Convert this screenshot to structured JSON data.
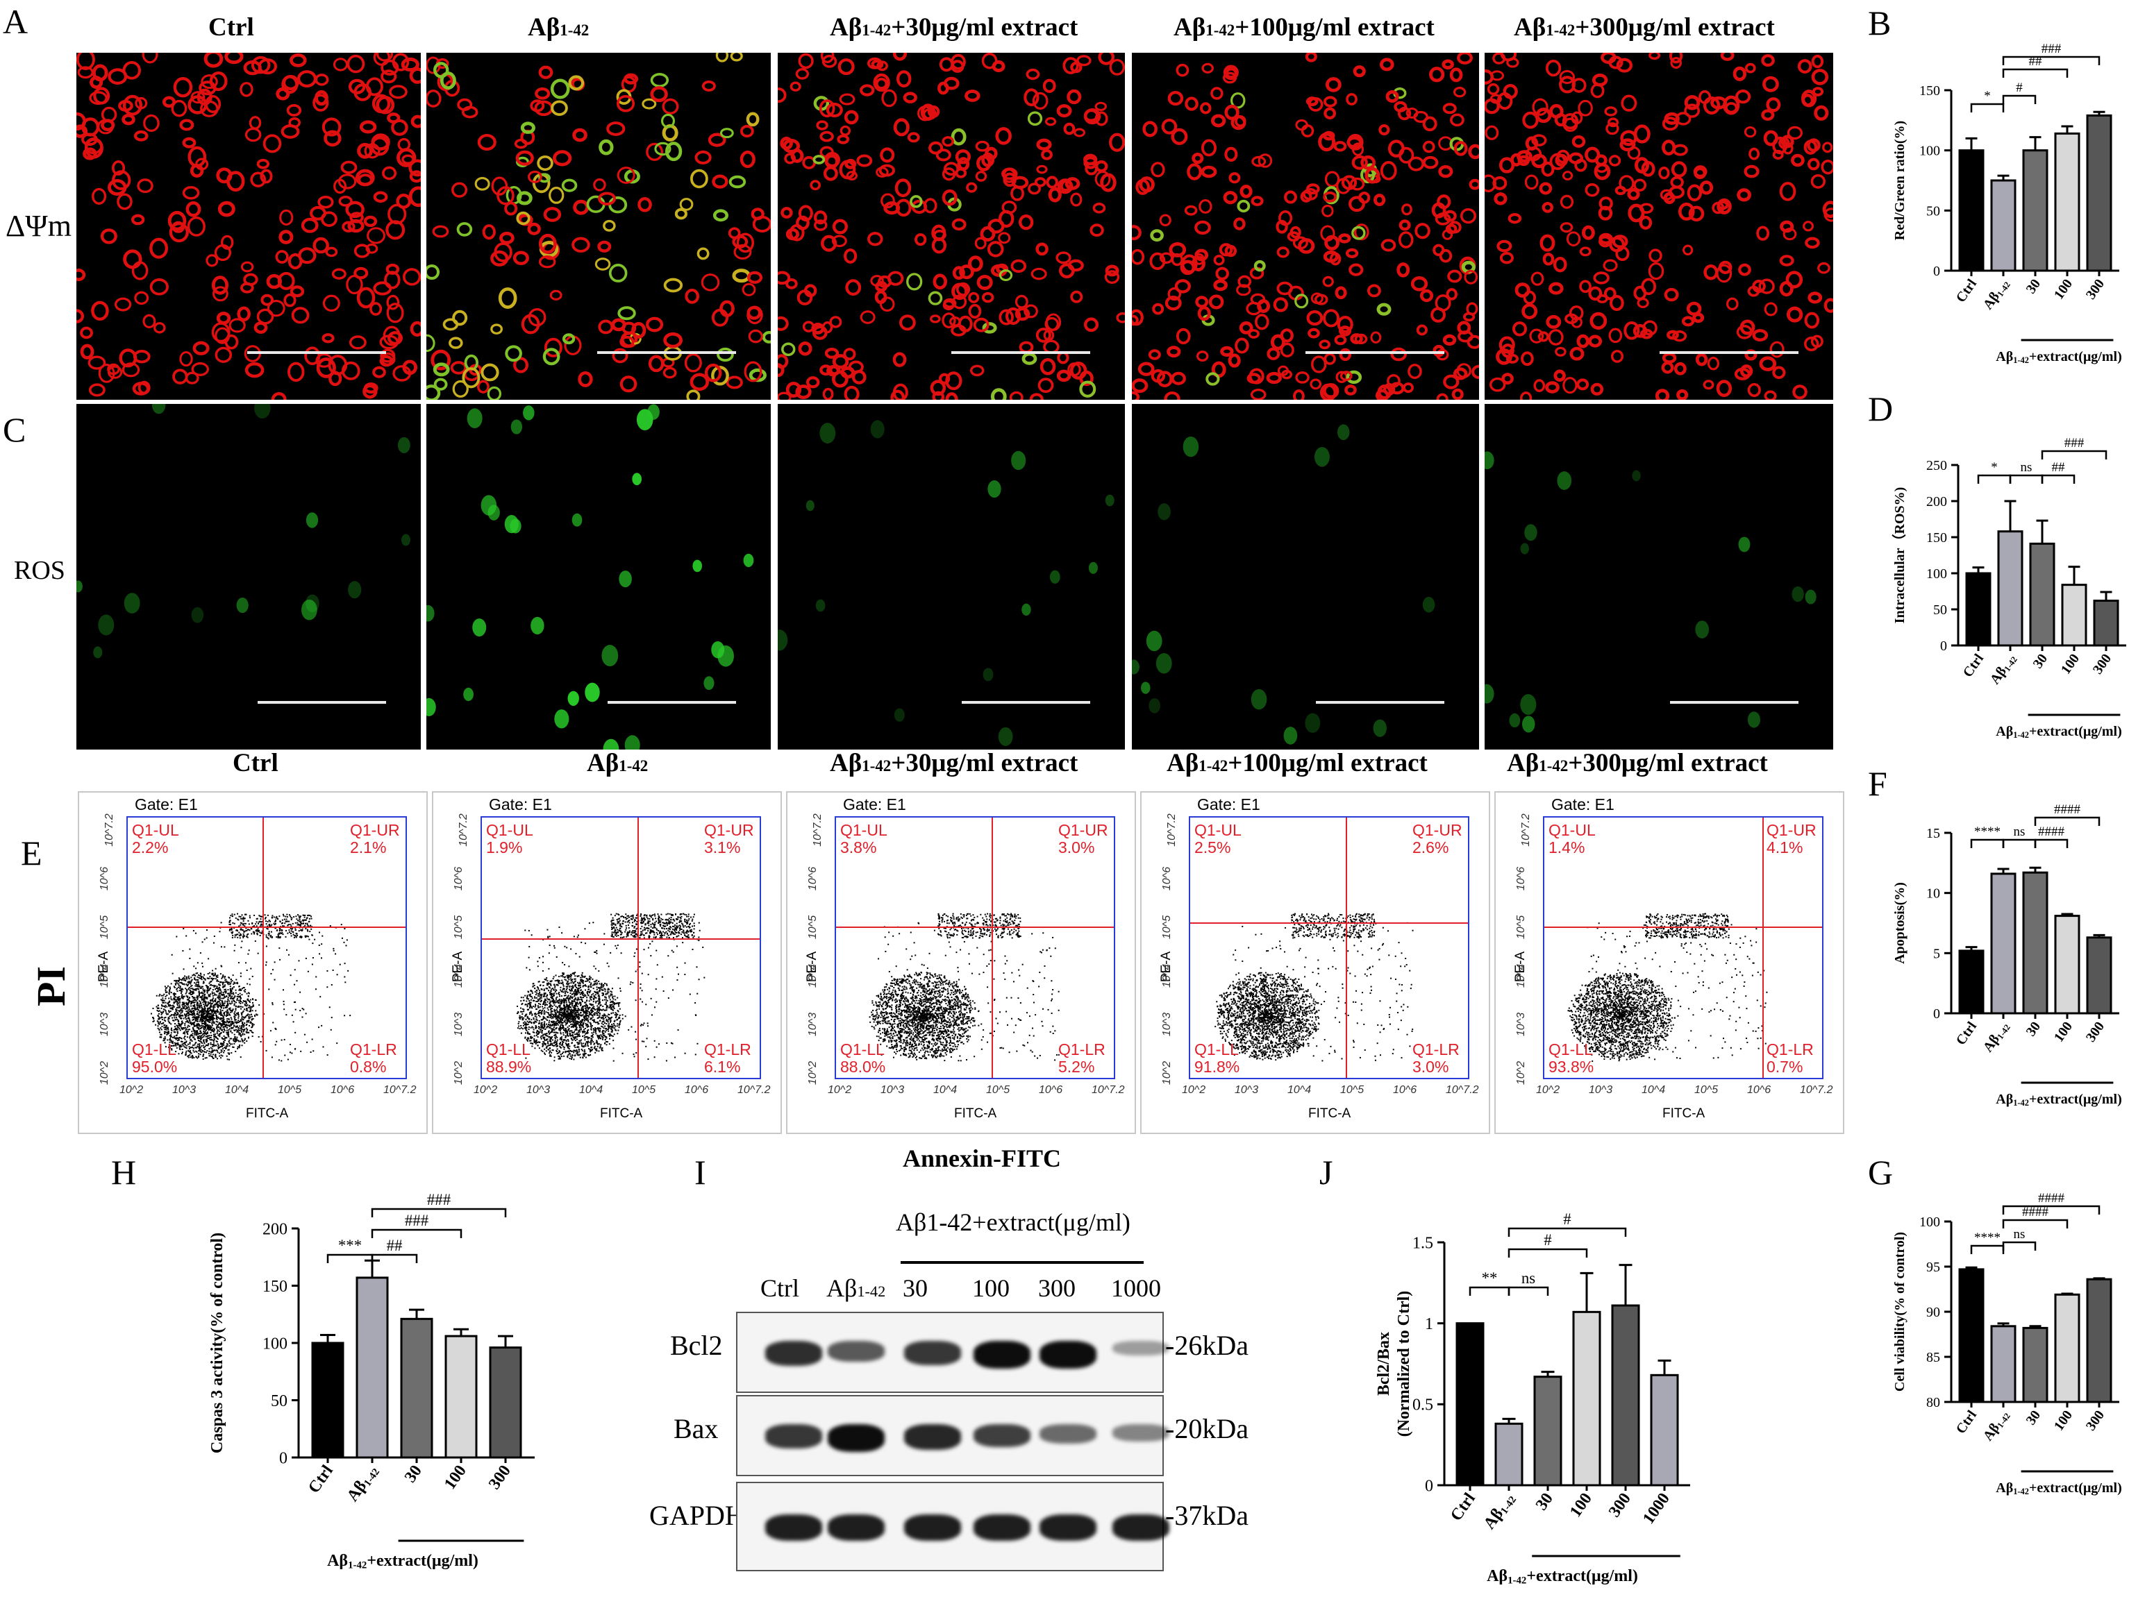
{
  "panel_letters": {
    "A": "A",
    "B": "B",
    "C": "C",
    "D": "D",
    "E": "E",
    "F": "F",
    "G": "G",
    "H": "H",
    "I": "I",
    "J": "J"
  },
  "groups": [
    "Ctrl",
    "Aβ1-42",
    "Aβ1-42+30μg/ml extract",
    "Aβ1-42+100μg/ml extract",
    "Aβ1-42+300μg/ml extract"
  ],
  "groups_top": [
    "Ctrl",
    "Aβ1-42",
    "Aβ1-42+30μg/ml extract",
    "Aβ1-42+100μg/ml extract",
    "Aβ1-42+300μg/ml extract"
  ],
  "row_labels": {
    "mmp": "ΔΨm",
    "ros": "ROS",
    "pi": "PI"
  },
  "flow": {
    "gate": "Gate: E1",
    "x_axis": "FITC-A",
    "y_axis": "PE-A",
    "bottom_label": "Annexin-FITC",
    "ticks_x": [
      "10^2",
      "10^3",
      "10^4",
      "10^5",
      "10^6",
      "10^7.2"
    ],
    "ticks_y": [
      "10^2",
      "10^3",
      "10^4",
      "10^5",
      "10^6",
      "10^7.2"
    ],
    "quadrants": [
      {
        "ul": "Q1-UL",
        "ul_v": "2.2%",
        "ur": "Q1-UR",
        "ur_v": "2.1%",
        "ll": "Q1-LL",
        "ll_v": "95.0%",
        "lr": "Q1-LR",
        "lr_v": "0.8%"
      },
      {
        "ul": "Q1-UL",
        "ul_v": "1.9%",
        "ur": "Q1-UR",
        "ur_v": "3.1%",
        "ll": "Q1-LL",
        "ll_v": "88.9%",
        "lr": "Q1-LR",
        "lr_v": "6.1%"
      },
      {
        "ul": "Q1-UL",
        "ul_v": "3.8%",
        "ur": "Q1-UR",
        "ur_v": "3.0%",
        "ll": "Q1-LL",
        "ll_v": "88.0%",
        "lr": "Q1-LR",
        "lr_v": "5.2%"
      },
      {
        "ul": "Q1-UL",
        "ul_v": "2.5%",
        "ur": "Q1-UR",
        "ur_v": "2.6%",
        "ll": "Q1-LL",
        "ll_v": "91.8%",
        "lr": "Q1-LR",
        "lr_v": "3.0%"
      },
      {
        "ul": "Q1-UL",
        "ul_v": "1.4%",
        "ur": "Q1-UR",
        "ur_v": "4.1%",
        "ll": "Q1-LL",
        "ll_v": "93.8%",
        "lr": "Q1-LR",
        "lr_v": "0.7%"
      }
    ]
  },
  "western": {
    "header": "Aβ1-42+extract(μg/ml)",
    "lanes": [
      "Ctrl",
      "Aβ1-42",
      "30",
      "100",
      "300",
      "1000"
    ],
    "rows": [
      {
        "label": "Bcl2",
        "kda": "-26kDa",
        "intensity": [
          0.8,
          0.55,
          0.75,
          1.0,
          1.0,
          0.15
        ]
      },
      {
        "label": "Bax",
        "kda": "-20kDa",
        "intensity": [
          0.75,
          1.0,
          0.85,
          0.7,
          0.45,
          0.3
        ]
      },
      {
        "label": "GAPDH",
        "kda": "-37kDa",
        "intensity": [
          0.9,
          0.9,
          0.9,
          0.9,
          0.9,
          0.9
        ]
      }
    ]
  },
  "chart_data": [
    {
      "id": "B",
      "type": "bar",
      "categories": [
        "Ctrl",
        "Aβ1-42",
        "30",
        "100",
        "300"
      ],
      "values": [
        100,
        75,
        100,
        114,
        129
      ],
      "errors": [
        10,
        4,
        11,
        6,
        3
      ],
      "ylabel": "Red/Green ratio(%)",
      "ylim": [
        0,
        150
      ],
      "yticks": [
        0,
        50,
        100,
        150
      ],
      "group_label": "Aβ1-42+extract(μg/ml)",
      "sig": [
        {
          "a": 0,
          "b": 1,
          "text": "*"
        },
        {
          "a": 1,
          "b": 2,
          "text": "#"
        },
        {
          "a": 1,
          "b": 3,
          "text": "##"
        },
        {
          "a": 1,
          "b": 4,
          "text": "###"
        }
      ]
    },
    {
      "id": "D",
      "type": "bar",
      "categories": [
        "Ctrl",
        "Aβ1-42",
        "30",
        "100",
        "300"
      ],
      "values": [
        100,
        158,
        141,
        84,
        62
      ],
      "errors": [
        8,
        42,
        32,
        25,
        12
      ],
      "ylabel": "Intracellular（ROS%)",
      "ylim": [
        0,
        250
      ],
      "yticks": [
        0,
        50,
        100,
        150,
        200,
        250
      ],
      "group_label": "Aβ1-42+extract(μg/ml)",
      "sig": [
        {
          "a": 0,
          "b": 1,
          "text": "*"
        },
        {
          "a": 1,
          "b": 2,
          "text": "ns"
        },
        {
          "a": 2,
          "b": 3,
          "text": "##"
        },
        {
          "a": 2,
          "b": 4,
          "text": "###"
        }
      ]
    },
    {
      "id": "F",
      "type": "bar",
      "categories": [
        "Ctrl",
        "Aβ1-42",
        "30",
        "100",
        "300"
      ],
      "values": [
        5.2,
        11.6,
        11.7,
        8.1,
        6.3
      ],
      "errors": [
        0.3,
        0.4,
        0.4,
        0.15,
        0.2
      ],
      "ylabel": "Apoptosis(%)",
      "ylim": [
        0,
        15
      ],
      "yticks": [
        0,
        5,
        10,
        15
      ],
      "group_label": "Aβ1-42+extract(μg/ml)",
      "sig": [
        {
          "a": 0,
          "b": 1,
          "text": "****"
        },
        {
          "a": 1,
          "b": 2,
          "text": "ns"
        },
        {
          "a": 2,
          "b": 3,
          "text": "####"
        },
        {
          "a": 2,
          "b": 4,
          "text": "####"
        }
      ]
    },
    {
      "id": "G",
      "type": "bar",
      "categories": [
        "Ctrl",
        "Aβ1-42",
        "30",
        "100",
        "300"
      ],
      "values": [
        94.7,
        88.4,
        88.2,
        91.9,
        93.6
      ],
      "errors": [
        0.2,
        0.3,
        0.2,
        0.1,
        0.1
      ],
      "ylabel": "Cell viability(% of control)",
      "ylim": [
        80,
        100
      ],
      "yticks": [
        80,
        85,
        90,
        95,
        100
      ],
      "group_label": "Aβ1-42+extract(μg/ml)",
      "sig": [
        {
          "a": 0,
          "b": 1,
          "text": "****"
        },
        {
          "a": 1,
          "b": 2,
          "text": "ns"
        },
        {
          "a": 1,
          "b": 3,
          "text": "####"
        },
        {
          "a": 1,
          "b": 4,
          "text": "####"
        }
      ]
    },
    {
      "id": "H",
      "type": "bar",
      "categories": [
        "Ctrl",
        "Aβ1-42",
        "30",
        "100",
        "300"
      ],
      "values": [
        100,
        157,
        121,
        106,
        96
      ],
      "errors": [
        7,
        15,
        8,
        6,
        10
      ],
      "ylabel": "Caspas 3 activity(% of control)",
      "ylim": [
        0,
        200
      ],
      "yticks": [
        0,
        50,
        100,
        150,
        200
      ],
      "group_label": "Aβ1-42+extract(μg/ml)",
      "sig": [
        {
          "a": 0,
          "b": 1,
          "text": "***"
        },
        {
          "a": 1,
          "b": 2,
          "text": "##"
        },
        {
          "a": 1,
          "b": 3,
          "text": "###"
        },
        {
          "a": 1,
          "b": 4,
          "text": "###"
        }
      ]
    },
    {
      "id": "J",
      "type": "bar",
      "categories": [
        "Ctrl",
        "Aβ1-42",
        "30",
        "100",
        "300",
        "1000"
      ],
      "values": [
        1.0,
        0.38,
        0.67,
        1.07,
        1.11,
        0.68
      ],
      "errors": [
        0,
        0.03,
        0.03,
        0.24,
        0.25,
        0.09
      ],
      "ylabel": "Bcl2/Bax\n(Normalized to Ctrl)",
      "ylim": [
        0,
        1.5
      ],
      "yticks": [
        0.0,
        0.5,
        1.0,
        1.5
      ],
      "group_label": "Aβ1-42+extract(μg/ml)",
      "sig": [
        {
          "a": 0,
          "b": 1,
          "text": "**"
        },
        {
          "a": 1,
          "b": 2,
          "text": "ns"
        },
        {
          "a": 1,
          "b": 3,
          "text": "#"
        },
        {
          "a": 1,
          "b": 4,
          "text": "#"
        }
      ]
    }
  ],
  "colors": {
    "black": "#000000",
    "abeta": "#a8a8b4",
    "c30": "#6e6e6e",
    "c100": "#d8d8d8",
    "c300": "#575757",
    "c1000": "#a8a8b4",
    "micro_red": "#e01010",
    "micro_green": "#22c020",
    "flow_blue": "#2a3bd6",
    "flow_red": "#e0202a"
  }
}
